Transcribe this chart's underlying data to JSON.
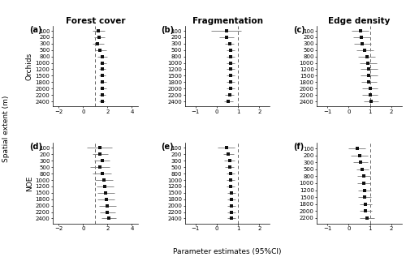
{
  "panels": [
    {
      "label": "(a)",
      "title": "Forest cover",
      "row": 0,
      "col": 0,
      "group": "Orchids",
      "xlim": [
        -2.5,
        4.5
      ],
      "xticks": [
        -2,
        0,
        2,
        4
      ],
      "vline": 1.0,
      "spatial_extents": [
        2400,
        2200,
        2000,
        1800,
        1500,
        1200,
        1000,
        800,
        500,
        300,
        200,
        100
      ],
      "estimates": [
        1.55,
        1.55,
        1.6,
        1.6,
        1.55,
        1.55,
        1.6,
        1.55,
        1.4,
        1.2,
        1.3,
        1.25
      ],
      "ci_low": [
        1.3,
        1.3,
        1.35,
        1.35,
        1.3,
        1.3,
        1.35,
        1.2,
        1.0,
        0.8,
        0.9,
        0.8
      ],
      "ci_high": [
        1.8,
        1.85,
        1.9,
        1.9,
        1.85,
        1.85,
        1.9,
        2.0,
        1.9,
        1.7,
        1.75,
        1.75
      ]
    },
    {
      "label": "(b)",
      "title": "Fragmentation",
      "row": 0,
      "col": 1,
      "group": "Orchids",
      "xlim": [
        -1.5,
        2.5
      ],
      "xticks": [
        -1,
        0,
        1,
        2
      ],
      "vline": 1.0,
      "spatial_extents": [
        2400,
        2200,
        2000,
        1800,
        1500,
        1200,
        1000,
        800,
        500,
        300,
        200,
        100
      ],
      "estimates": [
        0.55,
        0.6,
        0.65,
        0.65,
        0.65,
        0.65,
        0.65,
        0.65,
        0.65,
        0.6,
        0.45,
        0.45
      ],
      "ci_low": [
        0.35,
        0.4,
        0.45,
        0.45,
        0.45,
        0.45,
        0.45,
        0.45,
        0.45,
        0.4,
        0.1,
        -0.25
      ],
      "ci_high": [
        0.75,
        0.8,
        0.85,
        0.85,
        0.85,
        0.85,
        0.85,
        0.85,
        0.85,
        0.8,
        0.8,
        1.15
      ]
    },
    {
      "label": "(c)",
      "title": "Edge density",
      "row": 0,
      "col": 2,
      "group": "Orchids",
      "xlim": [
        -1.5,
        2.5
      ],
      "xticks": [
        -1,
        0,
        1,
        2
      ],
      "vline": 1.0,
      "spatial_extents": [
        2400,
        2200,
        2000,
        1800,
        1500,
        1200,
        1000,
        800,
        500,
        300,
        200,
        100
      ],
      "estimates": [
        1.05,
        1.0,
        1.0,
        0.95,
        0.95,
        0.95,
        0.9,
        0.85,
        0.75,
        0.65,
        0.6,
        0.55
      ],
      "ci_low": [
        0.7,
        0.65,
        0.65,
        0.6,
        0.55,
        0.55,
        0.5,
        0.45,
        0.35,
        0.25,
        0.2,
        0.15
      ],
      "ci_high": [
        1.4,
        1.35,
        1.35,
        1.3,
        1.35,
        1.35,
        1.3,
        1.25,
        1.15,
        1.05,
        1.0,
        0.95
      ]
    },
    {
      "label": "(d)",
      "title": "",
      "row": 1,
      "col": 0,
      "group": "NOE",
      "xlim": [
        -2.5,
        4.5
      ],
      "xticks": [
        -2,
        0,
        2,
        4
      ],
      "vline": 1.0,
      "spatial_extents": [
        2400,
        2200,
        2000,
        1800,
        1500,
        1200,
        1000,
        800,
        500,
        300,
        200,
        100
      ],
      "estimates": [
        2.1,
        2.0,
        2.0,
        1.9,
        1.85,
        1.8,
        1.7,
        1.55,
        1.35,
        1.55,
        1.4,
        1.35
      ],
      "ci_low": [
        1.5,
        1.35,
        1.3,
        1.2,
        1.15,
        1.1,
        0.95,
        0.8,
        0.55,
        0.9,
        0.75,
        0.3
      ],
      "ci_high": [
        2.7,
        2.65,
        2.7,
        2.6,
        2.55,
        2.5,
        2.45,
        2.3,
        2.15,
        2.2,
        2.05,
        2.4
      ]
    },
    {
      "label": "(e)",
      "title": "",
      "row": 1,
      "col": 1,
      "group": "NOE",
      "xlim": [
        -1.5,
        2.5
      ],
      "xticks": [
        -1,
        0,
        1,
        2
      ],
      "vline": 1.0,
      "spatial_extents": [
        2400,
        2200,
        2000,
        1800,
        1500,
        1200,
        1000,
        800,
        500,
        300,
        200,
        100
      ],
      "estimates": [
        0.7,
        0.7,
        0.7,
        0.7,
        0.7,
        0.65,
        0.65,
        0.65,
        0.6,
        0.6,
        0.55,
        0.45
      ],
      "ci_low": [
        0.5,
        0.5,
        0.5,
        0.5,
        0.5,
        0.45,
        0.45,
        0.45,
        0.4,
        0.35,
        0.3,
        0.05
      ],
      "ci_high": [
        0.9,
        0.9,
        0.9,
        0.9,
        0.9,
        0.85,
        0.85,
        0.85,
        0.8,
        0.85,
        0.8,
        0.85
      ]
    },
    {
      "label": "(f)",
      "title": "",
      "row": 1,
      "col": 2,
      "group": "NOE",
      "xlim": [
        -1.5,
        2.5
      ],
      "xticks": [
        -1,
        0,
        1,
        2
      ],
      "vline": 1.0,
      "spatial_extents": [
        2200,
        2000,
        1800,
        1500,
        1200,
        1000,
        800,
        500,
        300,
        200,
        100
      ],
      "estimates": [
        0.85,
        0.8,
        0.8,
        0.75,
        0.75,
        0.7,
        0.7,
        0.65,
        0.55,
        0.5,
        0.4
      ],
      "ci_low": [
        0.5,
        0.5,
        0.5,
        0.45,
        0.45,
        0.4,
        0.4,
        0.35,
        0.2,
        0.1,
        0.0
      ],
      "ci_high": [
        1.2,
        1.1,
        1.1,
        1.05,
        1.05,
        1.0,
        1.0,
        0.95,
        0.9,
        0.9,
        0.8
      ]
    }
  ],
  "ylabel": "Spatial extent (m)",
  "xlabel": "Parameter estimates (95%CI)",
  "point_color": "#111111",
  "line_color": "#888888",
  "vline_color": "#666666",
  "fontsize": 6.5,
  "title_fontsize": 7.5
}
